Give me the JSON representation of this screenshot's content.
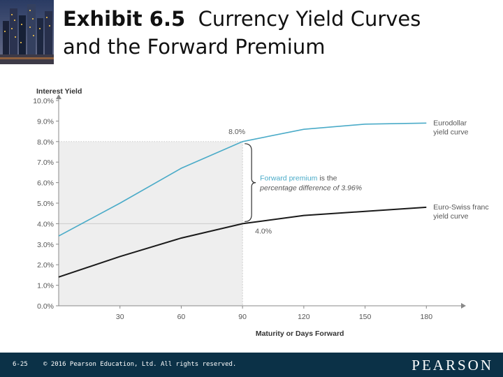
{
  "slide": {
    "title_bold": "Exhibit 6.5",
    "title_rest": "Currency Yield Curves",
    "title_line2": "and the Forward Premium"
  },
  "footer": {
    "slide_number": "6-25",
    "copyright": "© 2016 Pearson Education, Ltd. All rights reserved.",
    "brand": "PEARSON",
    "background": "#0b3147"
  },
  "chart_data": {
    "type": "line",
    "ylabel": "Interest Yield",
    "xlabel": "Maturity or Days Forward",
    "xlim": [
      0,
      197
    ],
    "ylim": [
      0,
      10
    ],
    "x_ticks": [
      30,
      60,
      90,
      120,
      150,
      180
    ],
    "y_ticks": [
      "0.0%",
      "1.0%",
      "2.0%",
      "3.0%",
      "4.0%",
      "5.0%",
      "6.0%",
      "7.0%",
      "8.0%",
      "9.0%",
      "10.0%"
    ],
    "y_tick_values": [
      0,
      1,
      2,
      3,
      4,
      5,
      6,
      7,
      8,
      9,
      10
    ],
    "series": [
      {
        "name": "Eurodollar yield curve",
        "label_lines": [
          "Eurodollar",
          "yield curve"
        ],
        "color": "#4aabc8",
        "x": [
          0,
          30,
          60,
          90,
          120,
          150,
          180
        ],
        "y": [
          3.4,
          5.0,
          6.7,
          8.0,
          8.6,
          8.85,
          8.9
        ]
      },
      {
        "name": "Euro-Swiss franc yield curve",
        "label_lines": [
          "Euro-Swiss franc",
          "yield curve"
        ],
        "color": "#1a1a1a",
        "x": [
          0,
          30,
          60,
          90,
          120,
          150,
          180
        ],
        "y": [
          1.4,
          2.4,
          3.3,
          4.0,
          4.4,
          4.6,
          4.8
        ]
      }
    ],
    "annotations": {
      "point_high": "8.0%",
      "point_low": "4.0%",
      "premium_highlight": "Forward premium",
      "premium_rest": " is the",
      "premium_line2": "percentage difference of 3.96%",
      "premium_color": "#4aabc8",
      "shaded_region_x": [
        0,
        90
      ]
    },
    "grid": false
  }
}
